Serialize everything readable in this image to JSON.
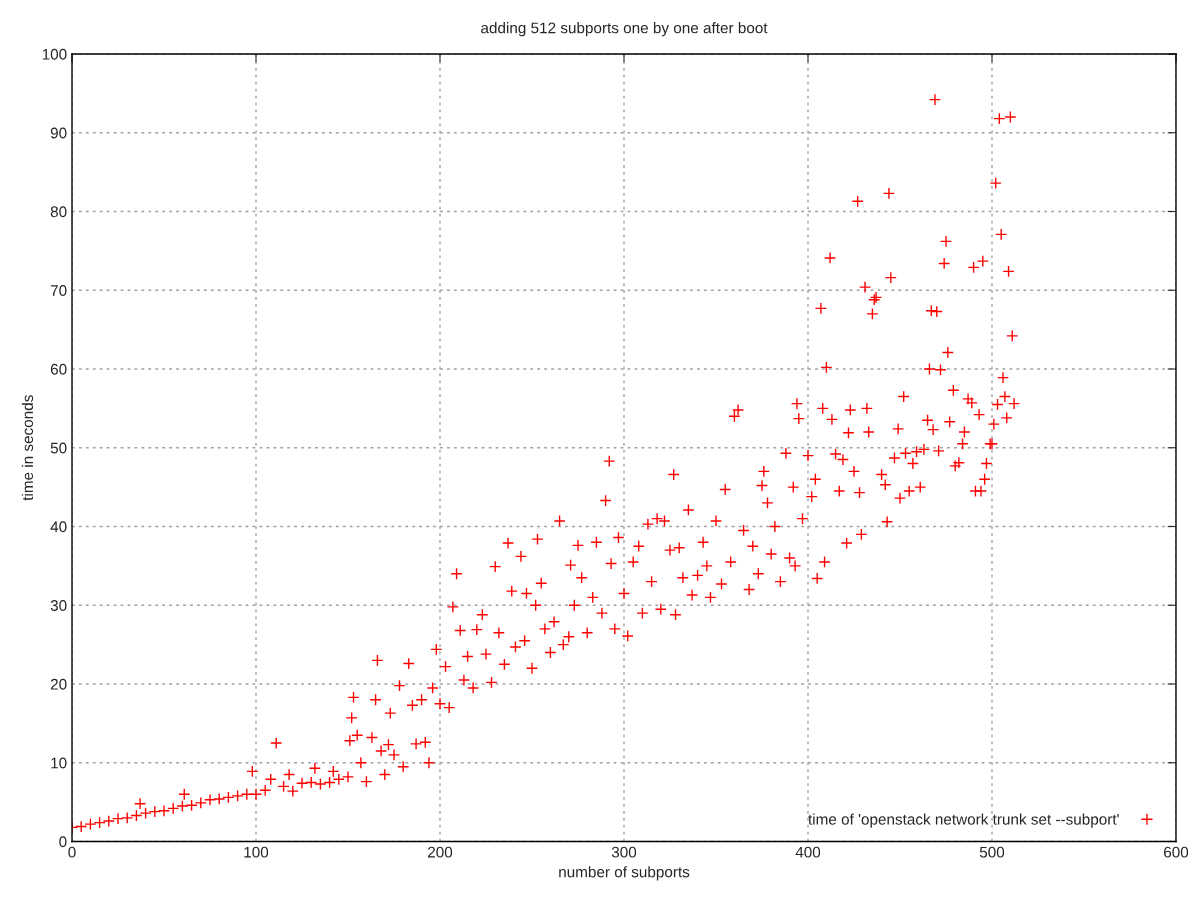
{
  "chart_data": {
    "type": "scatter",
    "title": "adding 512 subports one by one after boot",
    "xlabel": "number of subports",
    "ylabel": "time in seconds",
    "xlim": [
      0,
      600
    ],
    "xticks": [
      0,
      100,
      200,
      300,
      400,
      500,
      600
    ],
    "ylim": [
      0,
      100
    ],
    "yticks": [
      0,
      10,
      20,
      30,
      40,
      50,
      60,
      70,
      80,
      90,
      100
    ],
    "grid": true,
    "legend": "bottom right",
    "marker": "cross",
    "series": [
      {
        "name": "time of 'openstack network trunk set --subport'",
        "color": "#ff0000",
        "x": [
          0,
          5,
          10,
          15,
          20,
          25,
          30,
          35,
          37,
          40,
          45,
          50,
          55,
          60,
          61,
          65,
          70,
          75,
          80,
          85,
          90,
          95,
          98,
          100,
          105,
          108,
          111,
          115,
          118,
          120,
          125,
          130,
          132,
          135,
          140,
          142,
          145,
          150,
          151,
          152,
          153,
          155,
          157,
          160,
          163,
          165,
          166,
          168,
          170,
          172,
          173,
          175,
          178,
          180,
          183,
          185,
          187,
          190,
          192,
          194,
          196,
          198,
          200,
          203,
          205,
          207,
          209,
          211,
          213,
          215,
          218,
          220,
          223,
          225,
          228,
          230,
          232,
          235,
          237,
          239,
          241,
          244,
          246,
          247,
          250,
          252,
          253,
          255,
          257,
          260,
          262,
          265,
          267,
          270,
          271,
          273,
          275,
          277,
          280,
          283,
          285,
          288,
          290,
          292,
          293,
          295,
          297,
          300,
          302,
          305,
          308,
          310,
          313,
          315,
          318,
          320,
          322,
          325,
          327,
          328,
          330,
          332,
          335,
          337,
          340,
          343,
          345,
          347,
          350,
          353,
          355,
          358,
          360,
          362,
          365,
          368,
          370,
          373,
          375,
          376,
          378,
          380,
          382,
          385,
          388,
          390,
          392,
          393,
          394,
          395,
          397,
          400,
          402,
          404,
          405,
          407,
          408,
          409,
          410,
          412,
          413,
          415,
          417,
          419,
          421,
          422,
          423,
          425,
          427,
          428,
          429,
          431,
          432,
          433,
          435,
          436,
          437,
          440,
          442,
          443,
          444,
          445,
          447,
          449,
          450,
          452,
          453,
          455,
          457,
          459,
          461,
          463,
          465,
          466,
          467,
          468,
          469,
          470,
          471,
          472,
          474,
          475,
          476,
          477,
          479,
          480,
          482,
          484,
          485,
          487,
          489,
          490,
          491,
          493,
          494,
          495,
          496,
          497,
          499,
          500,
          501,
          502,
          503,
          504,
          505,
          506,
          507,
          508,
          509,
          510,
          511,
          512
        ],
        "values": [
          1.8,
          1.9,
          2.2,
          2.4,
          2.6,
          2.9,
          3.0,
          3.3,
          4.8,
          3.6,
          3.8,
          3.9,
          4.2,
          4.5,
          6.0,
          4.6,
          4.9,
          5.3,
          5.4,
          5.6,
          5.8,
          6.0,
          8.9,
          6.0,
          6.5,
          7.9,
          12.5,
          7.0,
          8.5,
          6.4,
          7.4,
          7.5,
          9.3,
          7.3,
          7.5,
          8.9,
          7.9,
          8.2,
          12.8,
          15.7,
          18.3,
          13.5,
          10.0,
          7.6,
          13.2,
          18.0,
          23.0,
          11.5,
          8.5,
          12.3,
          16.3,
          11.0,
          19.8,
          9.5,
          22.6,
          17.3,
          12.4,
          18.0,
          12.6,
          10.0,
          19.5,
          24.4,
          17.5,
          22.2,
          17.0,
          29.8,
          34.0,
          26.8,
          20.5,
          23.5,
          19.5,
          26.9,
          28.8,
          23.8,
          20.2,
          34.9,
          26.5,
          22.5,
          37.9,
          31.8,
          24.7,
          36.2,
          25.5,
          31.5,
          22.0,
          30.0,
          38.4,
          32.8,
          27.0,
          24.0,
          27.9,
          40.7,
          25.0,
          26.0,
          35.1,
          30.0,
          37.6,
          33.5,
          26.5,
          31.0,
          38.0,
          29.0,
          43.3,
          48.3,
          35.3,
          27.0,
          38.6,
          31.5,
          26.1,
          35.5,
          37.5,
          29.0,
          40.3,
          33.0,
          41.0,
          29.5,
          40.7,
          37.0,
          46.6,
          28.8,
          37.3,
          33.5,
          42.1,
          31.3,
          33.8,
          38.0,
          35.0,
          31.0,
          40.7,
          32.7,
          44.7,
          35.5,
          54.0,
          54.8,
          39.5,
          32.0,
          37.5,
          34.0,
          45.2,
          47.0,
          43.0,
          36.5,
          40.0,
          33.0,
          49.3,
          36.0,
          45.0,
          35.0,
          55.6,
          53.7,
          41.0,
          49.0,
          43.8,
          46.0,
          33.4,
          67.7,
          55.0,
          35.5,
          60.2,
          74.1,
          53.6,
          49.2,
          44.5,
          48.5,
          37.9,
          51.9,
          54.8,
          47.0,
          81.3,
          44.3,
          39.0,
          70.4,
          55.0,
          52.0,
          67.0,
          68.8,
          69.1,
          46.6,
          45.3,
          40.6,
          82.3,
          71.6,
          48.7,
          52.4,
          43.6,
          56.5,
          49.3,
          44.5,
          48.0,
          49.5,
          45.0,
          49.8,
          53.5,
          60.0,
          67.4,
          52.3,
          94.2,
          67.3,
          49.6,
          59.9,
          73.4,
          76.2,
          62.1,
          53.3,
          57.3,
          47.7,
          48.1,
          50.5,
          52.0,
          56.2,
          55.7,
          72.9,
          44.5,
          54.2,
          44.5,
          73.7,
          46.0,
          48.0,
          50.5,
          50.5,
          53.0,
          83.6,
          55.5,
          91.8,
          77.1,
          58.9,
          56.5,
          53.8,
          72.4,
          92.0,
          64.2,
          55.6
        ]
      }
    ]
  }
}
